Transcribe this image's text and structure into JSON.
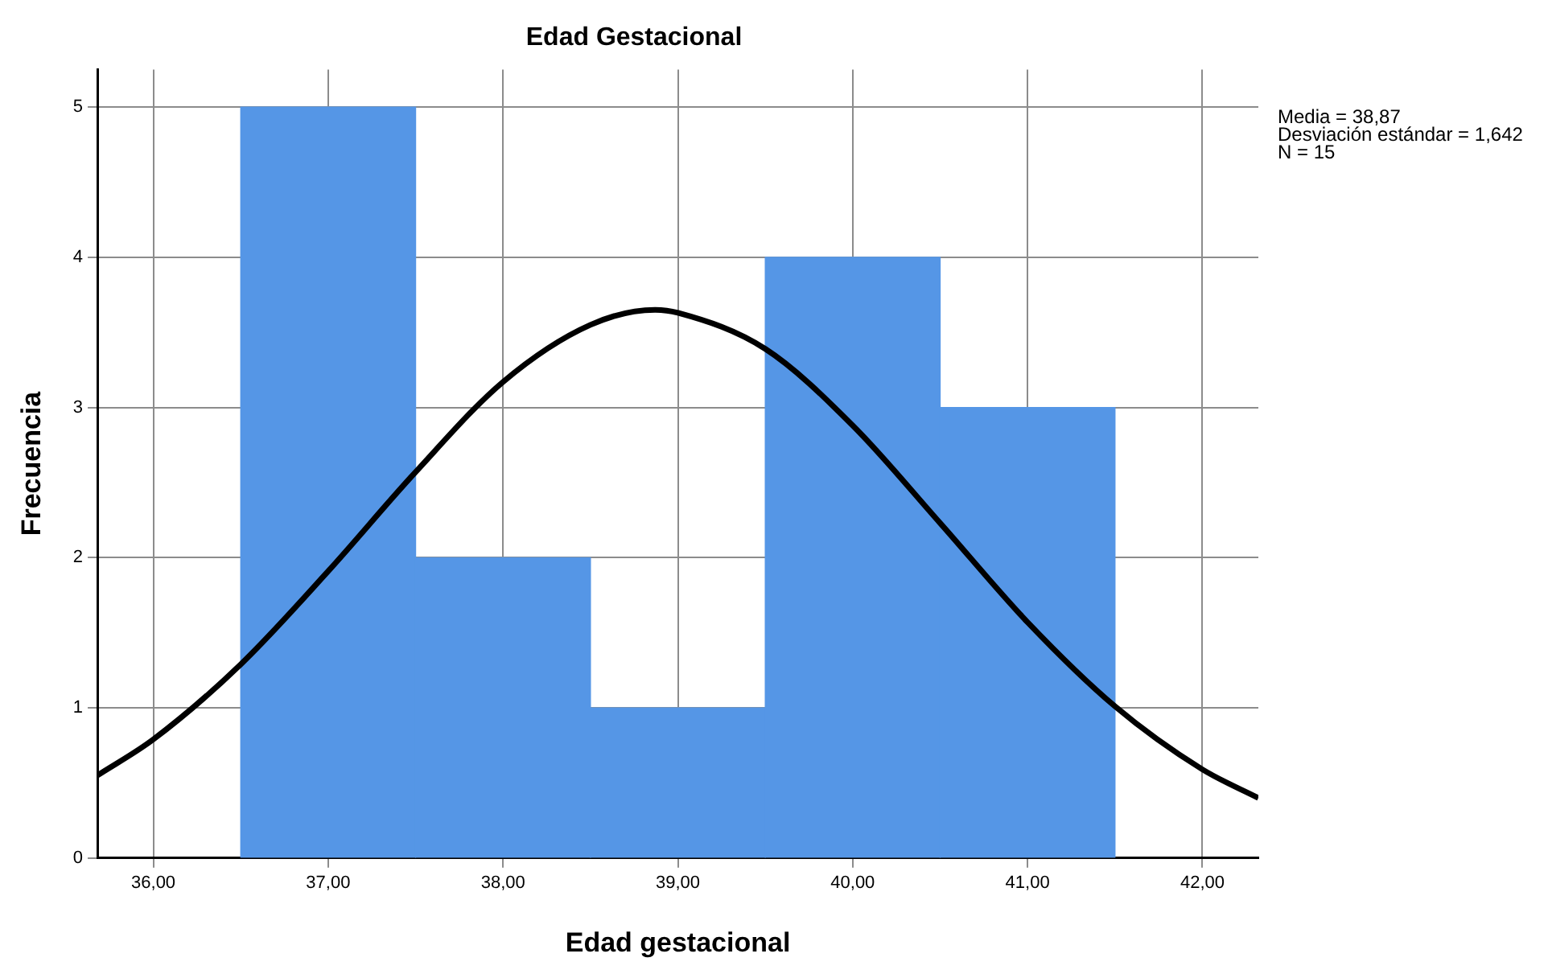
{
  "chart_data": {
    "type": "histogram",
    "title": "Edad Gestacional",
    "xlabel": "Edad gestacional",
    "ylabel": "Frecuencia",
    "bins": [
      36.5,
      37.5,
      38.5,
      39.5,
      40.5,
      41.5
    ],
    "values": [
      5,
      2,
      1,
      4,
      3
    ],
    "color": "#5596e6",
    "series": [
      {
        "type": "line",
        "color": "#000000",
        "x": [
          35.68,
          36,
          36.5,
          37,
          37.5,
          38,
          38.5,
          38.87,
          39,
          39.5,
          40,
          40.5,
          41,
          41.5,
          42,
          42.32
        ],
        "values": [
          0.55,
          0.79,
          1.29,
          1.91,
          2.57,
          3.17,
          3.55,
          3.65,
          3.63,
          3.39,
          2.88,
          2.23,
          1.57,
          1.01,
          0.59,
          0.4
        ]
      }
    ],
    "xlim": [
      35.68,
      42.32
    ],
    "xticks": [
      {
        "value": 36,
        "label": "36,00"
      },
      {
        "value": 37,
        "label": "37,00"
      },
      {
        "value": 38,
        "label": "38,00"
      },
      {
        "value": 39,
        "label": "39,00"
      },
      {
        "value": 40,
        "label": "40,00"
      },
      {
        "value": 41,
        "label": "41,00"
      },
      {
        "value": 42,
        "label": "42,00"
      }
    ],
    "ylim": [
      0,
      5.25
    ],
    "yticks": [
      0,
      1,
      2,
      3,
      4,
      5
    ],
    "grid": true,
    "legend": false,
    "annotations": [
      "Media = 38,87",
      "Desviación estándar = 1,642",
      "N = 15"
    ]
  }
}
